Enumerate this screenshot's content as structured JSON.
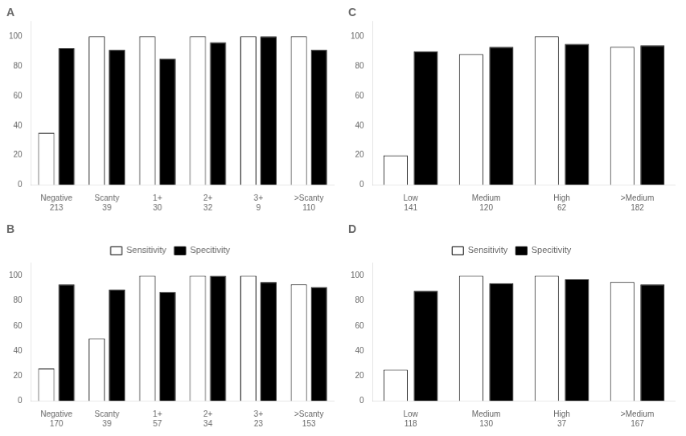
{
  "chart_data": [
    {
      "type": "bar",
      "title": "A",
      "categories": [
        "Negative",
        "Scanty",
        "1+",
        "2+",
        "3+",
        ">Scanty"
      ],
      "n_values": [
        213,
        39,
        30,
        32,
        9,
        110
      ],
      "series": [
        {
          "color": "white",
          "values": [
            35,
            100,
            100,
            100,
            100,
            100
          ]
        },
        {
          "color": "black",
          "values": [
            92,
            91,
            85,
            96,
            100,
            91
          ]
        }
      ],
      "ylim": [
        0,
        110
      ],
      "yticks": [
        0,
        20,
        40,
        60,
        80,
        100
      ],
      "grid": false
    },
    {
      "type": "bar",
      "title": "C",
      "categories": [
        "Low",
        "Medium",
        "High",
        ">Medium"
      ],
      "n_values": [
        141,
        120,
        62,
        182
      ],
      "series": [
        {
          "color": "white",
          "values": [
            20,
            88,
            100,
            93
          ]
        },
        {
          "color": "black",
          "values": [
            90,
            93,
            95,
            94
          ]
        }
      ],
      "ylim": [
        0,
        110
      ],
      "yticks": [
        0,
        20,
        40,
        60,
        80,
        100
      ],
      "grid": false
    },
    {
      "type": "bar",
      "title": "B",
      "categories": [
        "Negative",
        "Scanty",
        "1+",
        "2+",
        "3+",
        ">Scanty"
      ],
      "n_values": [
        170,
        39,
        57,
        34,
        23,
        153
      ],
      "series": [
        {
          "name": "Sensitivity",
          "color": "white",
          "values": [
            26,
            50,
            100,
            100,
            100,
            93
          ]
        },
        {
          "name": "Specitivity",
          "color": "black",
          "values": [
            93,
            89,
            87,
            100,
            95,
            91
          ]
        }
      ],
      "ylim": [
        0,
        110
      ],
      "yticks": [
        0,
        20,
        40,
        60,
        80,
        100
      ],
      "grid": false,
      "legend": "top"
    },
    {
      "type": "bar",
      "title": "D",
      "categories": [
        "Low",
        "Medium",
        "High",
        ">Medium"
      ],
      "n_values": [
        118,
        130,
        37,
        167
      ],
      "series": [
        {
          "name": "Sensitivity",
          "color": "white",
          "values": [
            25,
            100,
            100,
            95
          ]
        },
        {
          "name": "Specitivity",
          "color": "black",
          "values": [
            88,
            94,
            97,
            93
          ]
        }
      ],
      "ylim": [
        0,
        110
      ],
      "yticks": [
        0,
        20,
        40,
        60,
        80,
        100
      ],
      "grid": false,
      "legend": "top"
    }
  ]
}
